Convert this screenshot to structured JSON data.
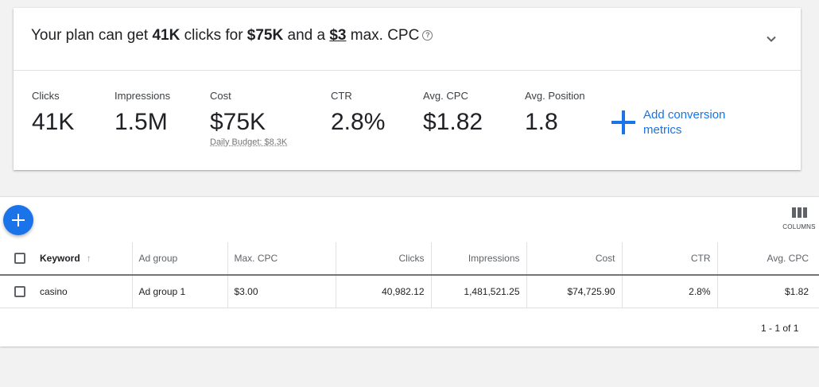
{
  "plan": {
    "title_prefix": "Your plan can get ",
    "clicks": "41K",
    "mid1": " clicks for ",
    "cost": "$75K",
    "mid2": " and a ",
    "cpc": "$3",
    "suffix": " max. CPC",
    "help_icon": "?"
  },
  "metrics": [
    {
      "label": "Clicks",
      "value": "41K"
    },
    {
      "label": "Impressions",
      "value": "1.5M"
    },
    {
      "label": "Cost",
      "value": "$75K",
      "sub": "Daily Budget: $8.3K"
    },
    {
      "label": "CTR",
      "value": "2.8%"
    },
    {
      "label": "Avg. CPC",
      "value": "$1.82"
    },
    {
      "label": "Avg. Position",
      "value": "1.8"
    }
  ],
  "add_conversion": "Add conversion metrics",
  "columns_label": "COLUMNS",
  "table": {
    "headers": [
      "Keyword",
      "Ad group",
      "Max. CPC",
      "Clicks",
      "Impressions",
      "Cost",
      "CTR",
      "Avg. CPC"
    ],
    "rows": [
      {
        "keyword": "casino",
        "ad_group": "Ad group 1",
        "max_cpc": "$3.00",
        "clicks": "40,982.12",
        "impressions": "1,481,521.25",
        "cost": "$74,725.90",
        "ctr": "2.8%",
        "avg_cpc": "$1.82"
      }
    ]
  },
  "pagination": "1 - 1 of 1",
  "colors": {
    "accent": "#1a73e8"
  }
}
